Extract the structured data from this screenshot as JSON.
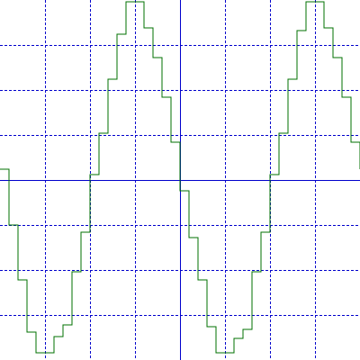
{
  "chart_data": {
    "type": "line",
    "x": [
      0,
      1,
      2,
      3,
      4,
      5,
      6,
      7,
      8,
      9,
      10,
      11,
      12,
      13,
      14,
      15,
      16,
      17,
      18,
      19,
      20,
      21,
      22,
      23,
      24,
      25,
      26,
      27,
      28,
      29,
      30,
      31,
      32,
      33,
      34,
      35,
      36,
      37,
      38,
      39,
      40
    ],
    "series": [
      {
        "values": [
          0.24,
          -1.0,
          -2.22,
          -3.38,
          -3.84,
          -3.84,
          -3.48,
          -3.22,
          -2.04,
          -1.16,
          0.12,
          1.04,
          2.24,
          3.24,
          3.96,
          3.96,
          3.38,
          2.72,
          1.84,
          0.84,
          -0.24,
          -1.28,
          -2.22,
          -3.26,
          -3.84,
          -3.84,
          -3.52,
          -3.32,
          -2.04,
          -1.16,
          0.12,
          1.04,
          2.24,
          3.32,
          3.96,
          3.96,
          3.38,
          2.72,
          1.84,
          0.84,
          0.24
        ],
        "color": "#007000"
      }
    ],
    "xlim": [
      0,
      40
    ],
    "ylim": [
      -4,
      4
    ],
    "x_grid_step": 5,
    "y_grid_step": 1,
    "grid": true,
    "grid_color": "#0000cc",
    "axis_color": "#0000cc",
    "background": "#ffffff"
  }
}
